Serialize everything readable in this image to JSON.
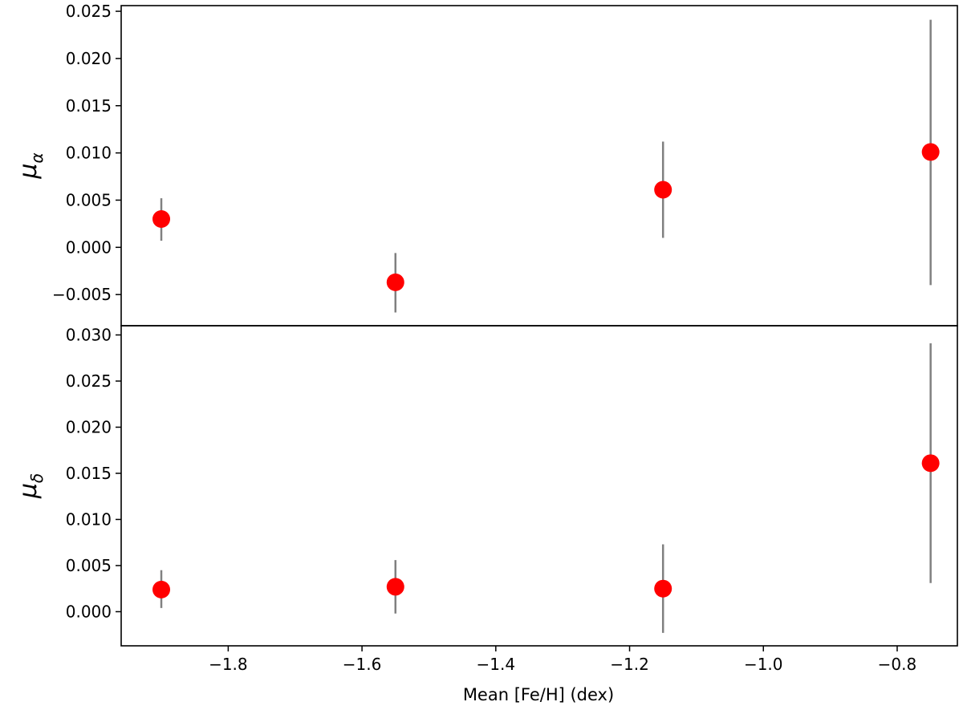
{
  "chart_data": {
    "type": "scatter",
    "shared_x": true,
    "xlabel": "Mean [Fe/H] (dex)",
    "xlim": [
      -1.96,
      -0.71
    ],
    "xticks": [
      -1.8,
      -1.6,
      -1.4,
      -1.2,
      -1.0,
      -0.8
    ],
    "xtick_labels": [
      "−1.8",
      "−1.6",
      "−1.4",
      "−1.2",
      "−1.0",
      "−0.8"
    ],
    "marker_color": "#ff0000",
    "errorbar_color": "#808080",
    "panels": [
      {
        "ylabel_main": "μ",
        "ylabel_sub": "α",
        "ylim": [
          -0.0083,
          0.0256
        ],
        "yticks": [
          -0.005,
          0.0,
          0.005,
          0.01,
          0.015,
          0.02,
          0.025
        ],
        "ytick_labels": [
          "−0.005",
          "0.000",
          "0.005",
          "0.010",
          "0.015",
          "0.020",
          "0.025"
        ],
        "points": [
          {
            "x": -1.9,
            "y": 0.003,
            "err_low": 0.0007,
            "err_high": 0.0052
          },
          {
            "x": -1.55,
            "y": -0.0037,
            "err_low": -0.0069,
            "err_high": -0.0006
          },
          {
            "x": -1.15,
            "y": 0.0061,
            "err_low": 0.001,
            "err_high": 0.0112
          },
          {
            "x": -0.75,
            "y": 0.0101,
            "err_low": -0.004,
            "err_high": 0.0241
          }
        ]
      },
      {
        "ylabel_main": "μ",
        "ylabel_sub": "δ",
        "ylim": [
          -0.0037,
          0.031
        ],
        "yticks": [
          0.0,
          0.005,
          0.01,
          0.015,
          0.02,
          0.025,
          0.03
        ],
        "ytick_labels": [
          "0.000",
          "0.005",
          "0.010",
          "0.015",
          "0.020",
          "0.025",
          "0.030"
        ],
        "points": [
          {
            "x": -1.9,
            "y": 0.0024,
            "err_low": 0.0004,
            "err_high": 0.0045
          },
          {
            "x": -1.55,
            "y": 0.0027,
            "err_low": -0.0002,
            "err_high": 0.0056
          },
          {
            "x": -1.15,
            "y": 0.0025,
            "err_low": -0.0023,
            "err_high": 0.0073
          },
          {
            "x": -0.75,
            "y": 0.0161,
            "err_low": 0.0031,
            "err_high": 0.0291
          }
        ]
      }
    ]
  }
}
